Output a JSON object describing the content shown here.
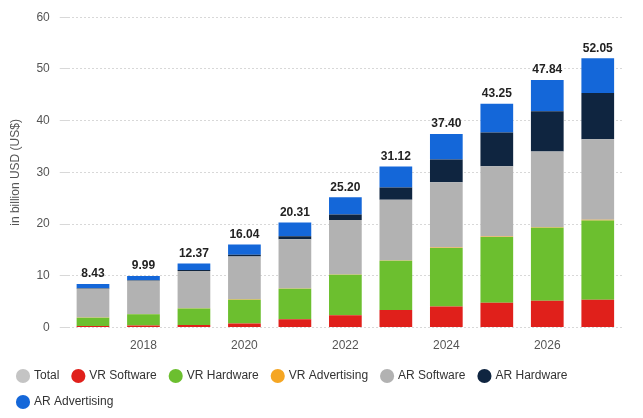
{
  "chart_data": {
    "type": "bar",
    "y_label": "in billion USD (US$)",
    "categories": [
      null,
      2018,
      null,
      2020,
      null,
      2022,
      null,
      2024,
      null,
      2026,
      null
    ],
    "ylim": [
      0,
      60
    ],
    "yticks": [
      0,
      10,
      20,
      30,
      40,
      50,
      60
    ],
    "grid": true,
    "stacked": true,
    "data_labels": true,
    "legend": "bottom-left",
    "series": [
      {
        "name": "Total",
        "type": "line",
        "line_style": "none",
        "color": "#c4c4c4",
        "values": [
          8.43,
          9.99,
          12.37,
          16.04,
          20.31,
          25.2,
          31.12,
          37.4,
          43.25,
          47.84,
          52.05
        ],
        "value_labels": [
          "8.43",
          "9.99",
          "12.37",
          "16.04",
          "20.31",
          "25.20",
          "31.12",
          "37.40",
          "43.25",
          "47.84",
          "52.05"
        ]
      },
      {
        "name": "VR Software",
        "color": "#e0201b",
        "values": [
          0.3,
          0.4,
          0.5,
          0.8,
          1.6,
          2.4,
          3.4,
          4.1,
          4.8,
          5.2,
          5.4
        ]
      },
      {
        "name": "VR Hardware",
        "color": "#6cbf2f",
        "values": [
          1.6,
          2.2,
          3.2,
          4.6,
          5.9,
          7.8,
          9.5,
          11.3,
          12.7,
          14.1,
          15.3
        ]
      },
      {
        "name": "VR Advertising",
        "color": "#f5a623",
        "values": [
          0.03,
          0.04,
          0.05,
          0.06,
          0.07,
          0.08,
          0.09,
          0.1,
          0.11,
          0.12,
          0.13
        ]
      },
      {
        "name": "AR Software",
        "color": "#b2b2b2",
        "values": [
          5.6,
          6.4,
          7.2,
          8.3,
          9.5,
          10.5,
          11.7,
          12.6,
          13.6,
          14.6,
          15.6
        ]
      },
      {
        "name": "AR Hardware",
        "color": "#0f2540",
        "values": [
          0.1,
          0.1,
          0.2,
          0.3,
          0.6,
          1.1,
          2.4,
          4.4,
          6.5,
          7.8,
          8.9
        ]
      },
      {
        "name": "AR Advertising",
        "color": "#1467d9",
        "values": [
          0.8,
          0.85,
          1.22,
          1.98,
          2.64,
          3.32,
          4.03,
          4.9,
          5.54,
          6.02,
          6.72
        ]
      }
    ]
  }
}
